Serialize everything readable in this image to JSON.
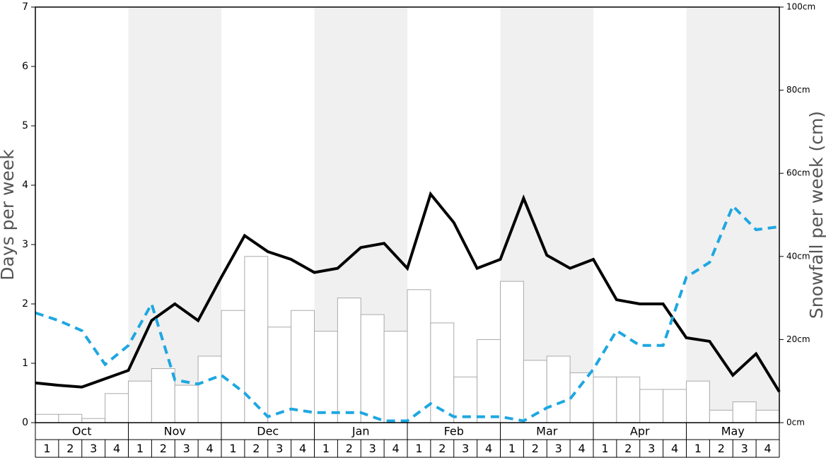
{
  "chart_data": {
    "type": "combo",
    "ylabel": "Days per week",
    "y2label": "Snowfall per week (cm)",
    "months": [
      "Oct",
      "Nov",
      "Dec",
      "Jan",
      "Feb",
      "Mar",
      "Apr",
      "May"
    ],
    "week_labels": [
      "1",
      "2",
      "3",
      "4"
    ],
    "shaded_months": [
      1,
      3,
      5,
      7
    ],
    "shade_color": "#f0f0f0",
    "ylim": [
      0,
      7
    ],
    "yticks": [
      0,
      1,
      2,
      3,
      4,
      5,
      6,
      7
    ],
    "y2lim": [
      0,
      100
    ],
    "y2ticks": [
      {
        "value": 0,
        "label": "0cm"
      },
      {
        "value": 20,
        "label": "20cm"
      },
      {
        "value": 40,
        "label": "40cm"
      },
      {
        "value": 60,
        "label": "60cm"
      },
      {
        "value": 80,
        "label": "80cm"
      },
      {
        "value": 100,
        "label": "100cm"
      }
    ],
    "series": [
      {
        "type": "bar",
        "axis": "y2",
        "color": "#ffffff",
        "values": [
          2,
          2,
          1,
          7,
          10,
          13,
          9,
          16,
          27,
          40,
          23,
          27,
          22,
          30,
          26,
          22,
          32,
          24,
          11,
          20,
          34,
          15,
          16,
          12,
          11,
          11,
          8,
          8,
          10,
          3,
          5,
          3
        ]
      },
      {
        "type": "line",
        "color": "#000000",
        "dashed": false,
        "values": [
          0.67,
          0.63,
          0.6,
          0.74,
          0.88,
          1.72,
          2.0,
          1.72,
          2.45,
          3.15,
          2.88,
          2.75,
          2.53,
          2.6,
          2.95,
          3.02,
          2.6,
          3.85,
          3.37,
          2.6,
          2.75,
          3.78,
          2.82,
          2.6,
          2.75,
          2.07,
          2.0,
          2.0,
          1.43,
          1.37,
          0.8,
          1.16,
          0.52
        ]
      },
      {
        "type": "line",
        "color": "#1ea7e1",
        "dashed": true,
        "values": [
          1.85,
          1.72,
          1.55,
          0.98,
          1.3,
          2.0,
          0.72,
          0.65,
          0.8,
          0.5,
          0.1,
          0.23,
          0.17,
          0.17,
          0.17,
          0.03,
          0.03,
          0.32,
          0.1,
          0.1,
          0.1,
          0.03,
          0.25,
          0.4,
          0.9,
          1.55,
          1.3,
          1.3,
          2.45,
          2.7,
          3.65,
          3.25,
          3.3
        ]
      }
    ]
  }
}
